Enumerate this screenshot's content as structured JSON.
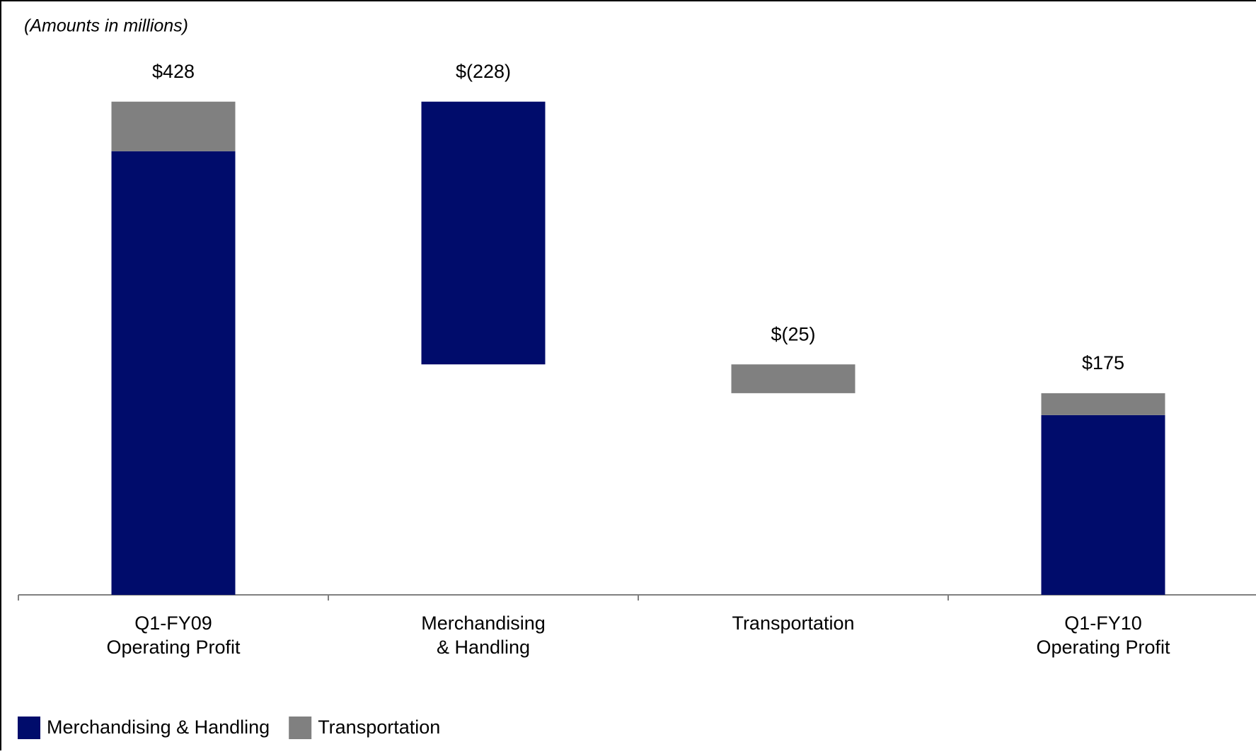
{
  "chart_data": {
    "type": "waterfall",
    "subtitle": "(Amounts in millions)",
    "categories": [
      [
        "Q1-FY09",
        "Operating Profit"
      ],
      [
        "Merchandising",
        "& Handling"
      ],
      [
        "Transportation"
      ],
      [
        "Q1-FY10",
        "Operating Profit"
      ]
    ],
    "values": [
      428,
      -228,
      -25,
      175
    ],
    "value_labels": [
      "$428",
      "$(228)",
      "$(25)",
      "$175"
    ],
    "is_total": [
      true,
      false,
      false,
      true
    ],
    "series": [
      {
        "name": "Merchandising & Handling",
        "color": "#000c6b",
        "values": [
          385,
          -228,
          null,
          156
        ]
      },
      {
        "name": "Transportation",
        "color": "#808080",
        "values": [
          43,
          null,
          -25,
          19
        ]
      }
    ],
    "ylim": [
      0,
      480
    ],
    "legend": "bottom-left"
  }
}
